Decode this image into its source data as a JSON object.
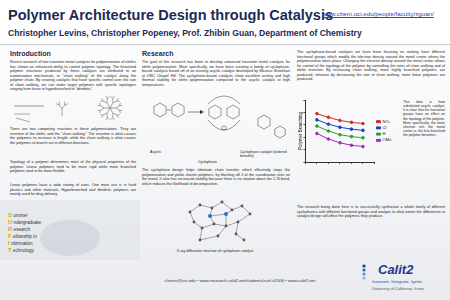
{
  "header": {
    "title": "Polymer Architecture Design through Catalysis",
    "url": "www.chem.uci.edu/people/faculty/zguan/",
    "authors": "Christopher Levins, Christopher Popeney, Prof. Zhibin Guan, Department of Chemistry"
  },
  "introduction": {
    "heading": "Introduction",
    "paragraphs": [
      "Recent research of late transition metal catalysts for polymerization of olefins has shown an enhanced ability to control polymer topology. The branched polymer structures produced by these catalysts are attributed to an isomerization mechanism, or “chain walking” of the catalyst along the polymer chain. By creating catalysts that have specific control over the rate of chain walking, we can make target polymers with specific topologies ranging from linear to hyperbranched to “dendritic”.",
      "There are two competing reactions in these polymerizations. They are insertion of the olefin, and the “chain walking.” The insertion is what causes the polymers to increase in length, while the chain walking is what causes the polymers to branch out in different directions.",
      "Topology of a polymer determines most of the physical properties of the polymer. Linear polymers tend to be more rigid while more branched polymers tend to be more flexible.",
      "Linear polymers have a wide variety of uses. One main use is in hard plastics and other materials. Hyperbranched and dendritic polymers are mainly used for drug delivery."
    ]
  },
  "research": {
    "heading": "Research",
    "paragraphs": [
      "The goal of this research has been to develop advanced transition metal catalysts for olefin polymerization. More specifically, we have been creating a family of cyclophane-based catalysts based off of an existing acyclic catalyst developed by Maurice Brookhart at UNC Chapel Hill. The cyclophane-based catalysts show excellent activity and high thermal stability for olefin polymerization compared to the acyclic catalyst at high temperatures.",
      "The cyclophane design helps eliminate chain transfer, which effectively stops the polymerization and yields shorter polymers, by blocking off 2 of the coordination sites on the metal. It also has increased stability because there is no rotation about the C-N bond, which reduces the likelihood of decomposition."
    ],
    "figure_labels": [
      "Acyclic",
      "Cyclophane",
      "Cyclophane catalyst (ordered benefits)"
    ],
    "xray_caption": "X-ray diffraction structure of cyclophane catalyst"
  },
  "results": {
    "paragraphs": [
      "The cyclophane-based catalysts we have been focusing on making have different functional groups which modify the electron density around the metal center where the polymerization takes place. Changing the electron density around the metal center allows for control of the topology of the polymer by controlling the rates of chain walking and of olefin insertion. By increasing chain walking, more highly branched polymers are produced, whereas by decreasing the rate of chain walking, more linear polymers are produced.",
      "This data is from substituted acyclic catalyst. It is clear that the functional groups have an effect on the topology of the polymer. More specifically, the more electron rich the metal center is, the less branched the polymer becomes.",
      "The research being done here is to successfully synthesize a whole family of different cyclophanes with different functional groups and analyze to what extent the differences in catalyst design will affect the polymers they produce."
    ]
  },
  "chart_data": {
    "type": "line",
    "y_label": "Polymer Branching",
    "x": [
      1,
      2,
      3,
      4,
      5
    ],
    "series": [
      {
        "name": "NO₂",
        "color": "#d62728",
        "values": [
          118,
          112,
          107,
          104,
          102
        ]
      },
      {
        "name": "Cl",
        "color": "#1f3fbf",
        "values": [
          108,
          101,
          96,
          93,
          91
        ]
      },
      {
        "name": "H",
        "color": "#2ca02c",
        "values": [
          98,
          90,
          84,
          81,
          79
        ]
      },
      {
        "name": "OMe",
        "color": "#9b30b0",
        "values": [
          86,
          77,
          71,
          67,
          65
        ]
      }
    ],
    "xlim": [
      0,
      6
    ],
    "xticks": [
      0,
      1,
      2,
      3,
      4,
      5,
      6
    ],
    "ylim": [
      40,
      140
    ],
    "yticks": [
      40,
      60,
      80,
      100,
      120,
      140
    ],
    "grid": false,
    "legend": "right",
    "tick_labels": false,
    "marker": "circle"
  },
  "footer": {
    "contact": "clevins@uci.edu  •  www.research.calit2.net/students/surf-it2006  •  www.calit2.net",
    "surf_it": [
      [
        "S",
        "ummer"
      ],
      [
        "U",
        "ndergraduate"
      ],
      [
        "R",
        "esearch"
      ],
      [
        "F",
        "ellowship in"
      ],
      [
        "I",
        "nformation"
      ],
      [
        "T",
        "echnology"
      ]
    ],
    "logo": {
      "name": "Calit2",
      "tagline": "Innovate. Integrate. Ignite.",
      "university": "University of California, Irvine"
    }
  }
}
